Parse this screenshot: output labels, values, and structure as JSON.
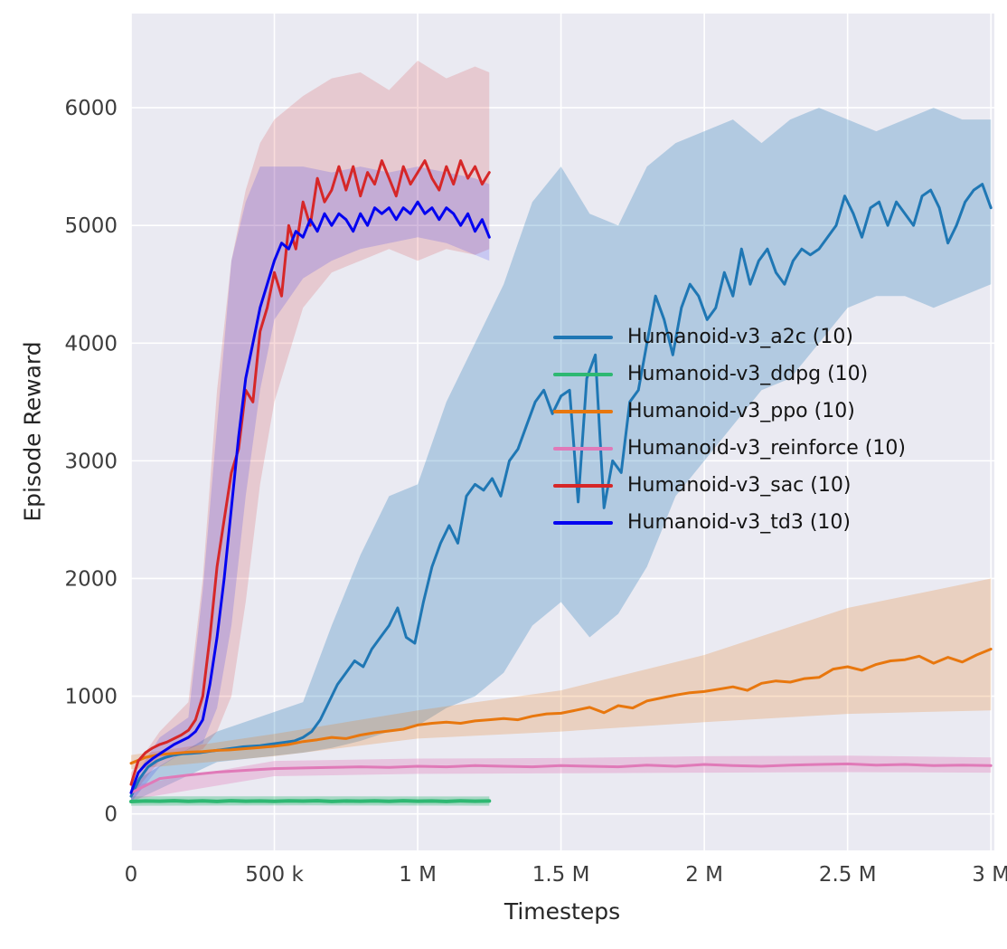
{
  "figure": {
    "background": "#ffffff",
    "plot_background": "#eaeaf2",
    "grid_color": "#ffffff",
    "tick_color": "#3d3d3d",
    "label_color": "#262626"
  },
  "chart_data": {
    "type": "line",
    "title": "",
    "xlabel": "Timesteps",
    "ylabel": "Episode Reward",
    "x_unit": "thousands of timesteps",
    "x_domain": [
      0,
      3012
    ],
    "y_domain": [
      -310,
      6800
    ],
    "grid": true,
    "legend": {
      "position": "center-right",
      "frame": false
    },
    "xticks": {
      "values": [
        0,
        500,
        1000,
        1500,
        2000,
        2500,
        3000
      ],
      "labels": [
        "0",
        "500 k",
        "1 M",
        "1.5 M",
        "2 M",
        "2.5 M",
        "3 M"
      ]
    },
    "yticks": {
      "values": [
        0,
        1000,
        2000,
        3000,
        4000,
        5000,
        6000
      ],
      "labels": [
        "0",
        "1000",
        "2000",
        "3000",
        "4000",
        "5000",
        "6000"
      ]
    },
    "series": [
      {
        "name": "a2c",
        "label": "Humanoid-v3_a2c (10)",
        "color": "#1f77b4",
        "line_width": 3,
        "x0": 0,
        "dx": 30,
        "y": [
          150,
          300,
          400,
          450,
          480,
          500,
          510,
          515,
          520,
          530,
          540,
          550,
          560,
          570,
          575,
          580,
          590,
          600,
          610,
          620,
          650,
          700,
          800,
          950,
          1100,
          1200,
          1300,
          1250,
          1400,
          1500,
          1600,
          1750,
          1500,
          1450,
          1800,
          2100,
          2300,
          2450,
          2300,
          2700,
          2800,
          2750,
          2850,
          2700,
          3000,
          3100,
          3300,
          3500,
          3600,
          3400,
          3550,
          3600,
          2650,
          3700,
          3900,
          2600,
          3000,
          2900,
          3500,
          3600,
          4000,
          4400,
          4200,
          3900,
          4300,
          4500,
          4400,
          4200,
          4300,
          4600,
          4400,
          4800,
          4500,
          4700,
          4800,
          4600,
          4500,
          4700,
          4800,
          4750,
          4800,
          4900,
          5000,
          5250,
          5100,
          4900,
          5150,
          5200,
          5000,
          5200,
          5100,
          5000,
          5250,
          5300,
          5150,
          4850,
          5000,
          5200,
          5300,
          5350,
          5150
        ],
        "band": {
          "opacity": 0.27,
          "x": [
            0,
            300,
            600,
            700,
            800,
            900,
            1000,
            1100,
            1200,
            1300,
            1400,
            1500,
            1600,
            1700,
            1800,
            1900,
            2000,
            2100,
            2200,
            2300,
            2400,
            2500,
            2600,
            2700,
            2800,
            2900,
            3000
          ],
          "lo": [
            100,
            440,
            520,
            560,
            620,
            700,
            750,
            900,
            1000,
            1200,
            1600,
            1800,
            1500,
            1700,
            2100,
            2700,
            3000,
            3300,
            3600,
            3700,
            4000,
            4300,
            4400,
            4400,
            4300,
            4400,
            4500
          ],
          "hi": [
            260,
            700,
            950,
            1600,
            2200,
            2700,
            2800,
            3500,
            4000,
            4500,
            5200,
            5500,
            5100,
            5000,
            5500,
            5700,
            5800,
            5900,
            5700,
            5900,
            6000,
            5900,
            5800,
            5900,
            6000,
            5900,
            5900
          ]
        }
      },
      {
        "name": "ddpg",
        "label": "Humanoid-v3_ddpg (10)",
        "color": "#2eb872",
        "line_width": 4,
        "x0": 0,
        "dx": 50,
        "y": [
          105,
          110,
          108,
          112,
          107,
          111,
          106,
          112,
          108,
          110,
          107,
          111,
          109,
          112,
          106,
          110,
          108,
          111,
          107,
          112,
          108,
          110,
          106,
          111,
          108,
          110
        ],
        "band": {
          "opacity": 0.35,
          "x": [
            0,
            625,
            1250
          ],
          "lo": [
            70,
            72,
            70
          ],
          "hi": [
            150,
            150,
            148
          ]
        }
      },
      {
        "name": "ppo",
        "label": "Humanoid-v3_ppo (10)",
        "color": "#e8770e",
        "line_width": 3,
        "x0": 0,
        "dx": 50,
        "y": [
          430,
          480,
          505,
          515,
          525,
          530,
          540,
          545,
          555,
          565,
          575,
          590,
          615,
          630,
          650,
          640,
          670,
          690,
          705,
          720,
          755,
          770,
          780,
          770,
          790,
          800,
          810,
          800,
          830,
          850,
          855,
          880,
          905,
          860,
          920,
          900,
          960,
          985,
          1010,
          1030,
          1040,
          1060,
          1080,
          1050,
          1110,
          1130,
          1120,
          1150,
          1160,
          1230,
          1250,
          1220,
          1270,
          1300,
          1310,
          1340,
          1280,
          1330,
          1290,
          1350,
          1400
        ],
        "band": {
          "opacity": 0.22,
          "x": [
            0,
            500,
            1000,
            1500,
            2000,
            2500,
            3000
          ],
          "lo": [
            380,
            490,
            640,
            700,
            780,
            850,
            880
          ],
          "hi": [
            500,
            680,
            880,
            1050,
            1350,
            1750,
            2000
          ]
        }
      },
      {
        "name": "reinforce",
        "label": "Humanoid-v3_reinforce (10)",
        "color": "#e07ab8",
        "line_width": 3,
        "x0": 0,
        "dx": 100,
        "y": [
          180,
          300,
          330,
          355,
          370,
          385,
          390,
          395,
          400,
          395,
          405,
          400,
          410,
          405,
          400,
          410,
          405,
          400,
          415,
          405,
          420,
          410,
          405,
          415,
          420,
          425,
          415,
          420,
          410,
          415,
          410
        ],
        "band": {
          "opacity": 0.33,
          "x": [
            0,
            500,
            1000,
            1500,
            2000,
            2500,
            3000
          ],
          "lo": [
            120,
            320,
            340,
            345,
            350,
            355,
            350
          ],
          "hi": [
            240,
            450,
            470,
            475,
            490,
            495,
            480
          ]
        }
      },
      {
        "name": "sac",
        "label": "Humanoid-v3_sac (10)",
        "color": "#d62728",
        "line_width": 3,
        "x0": 0,
        "dx": 25,
        "y": [
          250,
          450,
          520,
          560,
          590,
          610,
          640,
          670,
          710,
          800,
          1000,
          1500,
          2100,
          2500,
          2900,
          3100,
          3600,
          3500,
          4100,
          4300,
          4600,
          4400,
          5000,
          4800,
          5200,
          5000,
          5400,
          5200,
          5300,
          5500,
          5300,
          5500,
          5250,
          5450,
          5350,
          5550,
          5400,
          5250,
          5500,
          5350,
          5450,
          5550,
          5400,
          5300,
          5500,
          5350,
          5550,
          5400,
          5500,
          5350,
          5450
        ],
        "band": {
          "opacity": 0.17,
          "x": [
            0,
            100,
            200,
            250,
            300,
            350,
            400,
            450,
            500,
            600,
            700,
            800,
            900,
            1000,
            1100,
            1200,
            1250
          ],
          "lo": [
            150,
            450,
            520,
            550,
            700,
            1000,
            1800,
            2800,
            3500,
            4300,
            4600,
            4700,
            4800,
            4700,
            4800,
            4750,
            4800
          ],
          "hi": [
            350,
            700,
            950,
            2000,
            3600,
            4700,
            5300,
            5700,
            5900,
            6100,
            6250,
            6300,
            6150,
            6400,
            6250,
            6350,
            6300
          ]
        }
      },
      {
        "name": "td3",
        "label": "Humanoid-v3_td3 (10)",
        "color": "#0404f0",
        "line_width": 3,
        "x0": 0,
        "dx": 25,
        "y": [
          180,
          350,
          420,
          470,
          510,
          550,
          590,
          620,
          650,
          700,
          800,
          1100,
          1500,
          2000,
          2600,
          3200,
          3700,
          4000,
          4300,
          4500,
          4700,
          4850,
          4800,
          4950,
          4900,
          5050,
          4950,
          5100,
          5000,
          5100,
          5050,
          4950,
          5100,
          5000,
          5150,
          5100,
          5150,
          5050,
          5150,
          5100,
          5200,
          5100,
          5150,
          5050,
          5150,
          5100,
          5000,
          5100,
          4950,
          5050,
          4900
        ],
        "band": {
          "opacity": 0.15,
          "x": [
            0,
            100,
            200,
            250,
            300,
            350,
            400,
            450,
            500,
            600,
            700,
            800,
            900,
            1000,
            1100,
            1200,
            1250
          ],
          "lo": [
            100,
            400,
            550,
            600,
            900,
            1600,
            2700,
            3600,
            4200,
            4550,
            4700,
            4800,
            4850,
            4900,
            4850,
            4750,
            4700
          ],
          "hi": [
            260,
            650,
            820,
            1900,
            3300,
            4700,
            5200,
            5500,
            5500,
            5500,
            5450,
            5500,
            5450,
            5500,
            5450,
            5400,
            5350
          ]
        }
      }
    ]
  }
}
